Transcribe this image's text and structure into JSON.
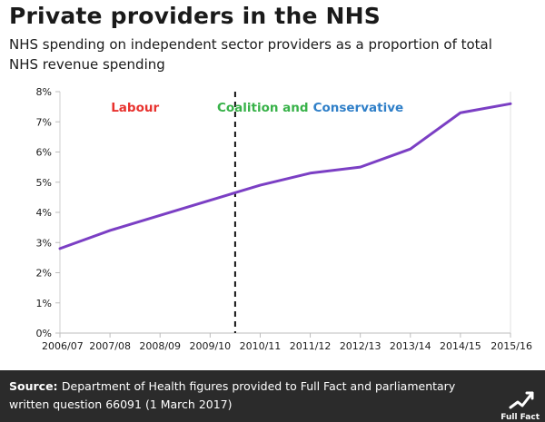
{
  "title": "Private providers in the NHS",
  "subtitle": "NHS spending on independent sector providers as a proportion of total NHS revenue spending",
  "chart_data": {
    "type": "line",
    "categories": [
      "2006/07",
      "2007/08",
      "2008/09",
      "2009/10",
      "2010/11",
      "2011/12",
      "2012/13",
      "2013/14",
      "2014/15",
      "2015/16"
    ],
    "series": [
      {
        "values": [
          2.8,
          3.4,
          3.9,
          4.4,
          4.9,
          5.3,
          5.5,
          6.1,
          7.3,
          7.6
        ]
      }
    ],
    "ylim": [
      0,
      8
    ],
    "yticks": [
      "0%",
      "1%",
      "2%",
      "3%",
      "4%",
      "5%",
      "6%",
      "7%",
      "8%"
    ],
    "annotations": {
      "divider_between": [
        "2009/10",
        "2010/11"
      ],
      "labour": "Labour",
      "coalition": "Coalition and",
      "conservative": "Conservative"
    },
    "colors": {
      "line": "#7b3fc4",
      "labour": "#e8322e",
      "coalition": "#38b249",
      "conservative": "#2f7fc8"
    }
  },
  "footer": {
    "source_label": "Source:",
    "source_text": "Department of Health figures provided to Full Fact and parliamentary written question 66091 (1 March 2017)",
    "logo_text": "Full Fact"
  }
}
